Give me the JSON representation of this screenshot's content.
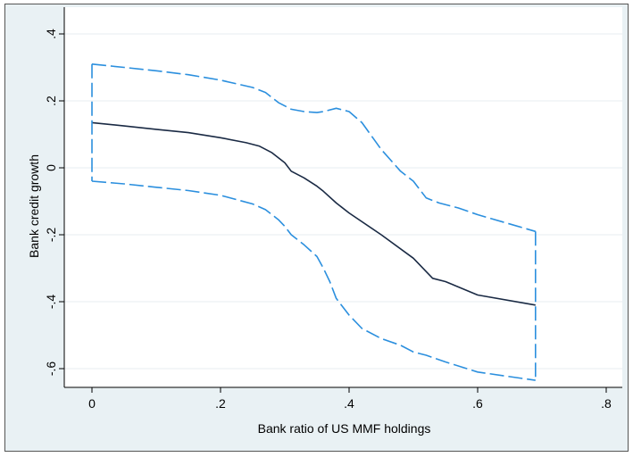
{
  "chart_data": {
    "type": "line",
    "title": "",
    "xlabel": "Bank ratio of US MMF holdings",
    "ylabel": "Bank credit growth",
    "xlim": [
      0,
      0.8
    ],
    "ylim": [
      -0.65,
      0.4
    ],
    "x_ticks": [
      {
        "value": 0,
        "label": "0"
      },
      {
        "value": 0.2,
        "label": ".2"
      },
      {
        "value": 0.4,
        "label": ".4"
      },
      {
        "value": 0.6,
        "label": ".6"
      },
      {
        "value": 0.8,
        "label": ".8"
      }
    ],
    "y_ticks": [
      {
        "value": -0.6,
        "label": "-.6"
      },
      {
        "value": -0.4,
        "label": "-.4"
      },
      {
        "value": -0.2,
        "label": "-.2"
      },
      {
        "value": 0,
        "label": "0"
      },
      {
        "value": 0.2,
        "label": ".2"
      },
      {
        "value": 0.4,
        "label": ".4"
      }
    ],
    "grid": true,
    "legend": "none",
    "colors": {
      "estimate": "#1a2a44",
      "band": "#2b8fde",
      "grid": "#e7eef2",
      "plot_bg": "#ffffff",
      "outer_bg": "#e9f1f4"
    },
    "series": [
      {
        "style": "solid",
        "x": [
          0,
          0.05,
          0.1,
          0.15,
          0.2,
          0.24,
          0.26,
          0.28,
          0.29,
          0.3,
          0.31,
          0.33,
          0.35,
          0.36,
          0.38,
          0.4,
          0.45,
          0.5,
          0.53,
          0.55,
          0.6,
          0.69
        ],
        "y": [
          0.135,
          0.125,
          0.115,
          0.105,
          0.09,
          0.075,
          0.065,
          0.045,
          0.03,
          0.015,
          -0.01,
          -0.03,
          -0.055,
          -0.07,
          -0.105,
          -0.135,
          -0.2,
          -0.27,
          -0.33,
          -0.34,
          -0.38,
          -0.41
        ]
      },
      {
        "style": "dashed",
        "x": [
          0,
          0.05,
          0.1,
          0.15,
          0.2,
          0.25,
          0.27,
          0.29,
          0.31,
          0.33,
          0.35,
          0.36,
          0.38,
          0.4,
          0.42,
          0.45,
          0.48,
          0.5,
          0.52,
          0.54,
          0.57,
          0.6,
          0.69
        ],
        "y": [
          0.31,
          0.3,
          0.29,
          0.278,
          0.262,
          0.24,
          0.225,
          0.195,
          0.175,
          0.168,
          0.165,
          0.168,
          0.178,
          0.168,
          0.135,
          0.055,
          -0.01,
          -0.04,
          -0.09,
          -0.105,
          -0.12,
          -0.14,
          -0.19
        ]
      },
      {
        "style": "dashed",
        "x": [
          0,
          0.05,
          0.1,
          0.15,
          0.2,
          0.25,
          0.27,
          0.29,
          0.3,
          0.31,
          0.33,
          0.35,
          0.36,
          0.37,
          0.38,
          0.4,
          0.42,
          0.45,
          0.48,
          0.5,
          0.52,
          0.55,
          0.6,
          0.69
        ],
        "y": [
          -0.04,
          -0.048,
          -0.058,
          -0.068,
          -0.082,
          -0.108,
          -0.125,
          -0.155,
          -0.175,
          -0.2,
          -0.23,
          -0.265,
          -0.3,
          -0.34,
          -0.39,
          -0.44,
          -0.48,
          -0.51,
          -0.53,
          -0.55,
          -0.56,
          -0.58,
          -0.61,
          -0.635
        ]
      }
    ]
  }
}
